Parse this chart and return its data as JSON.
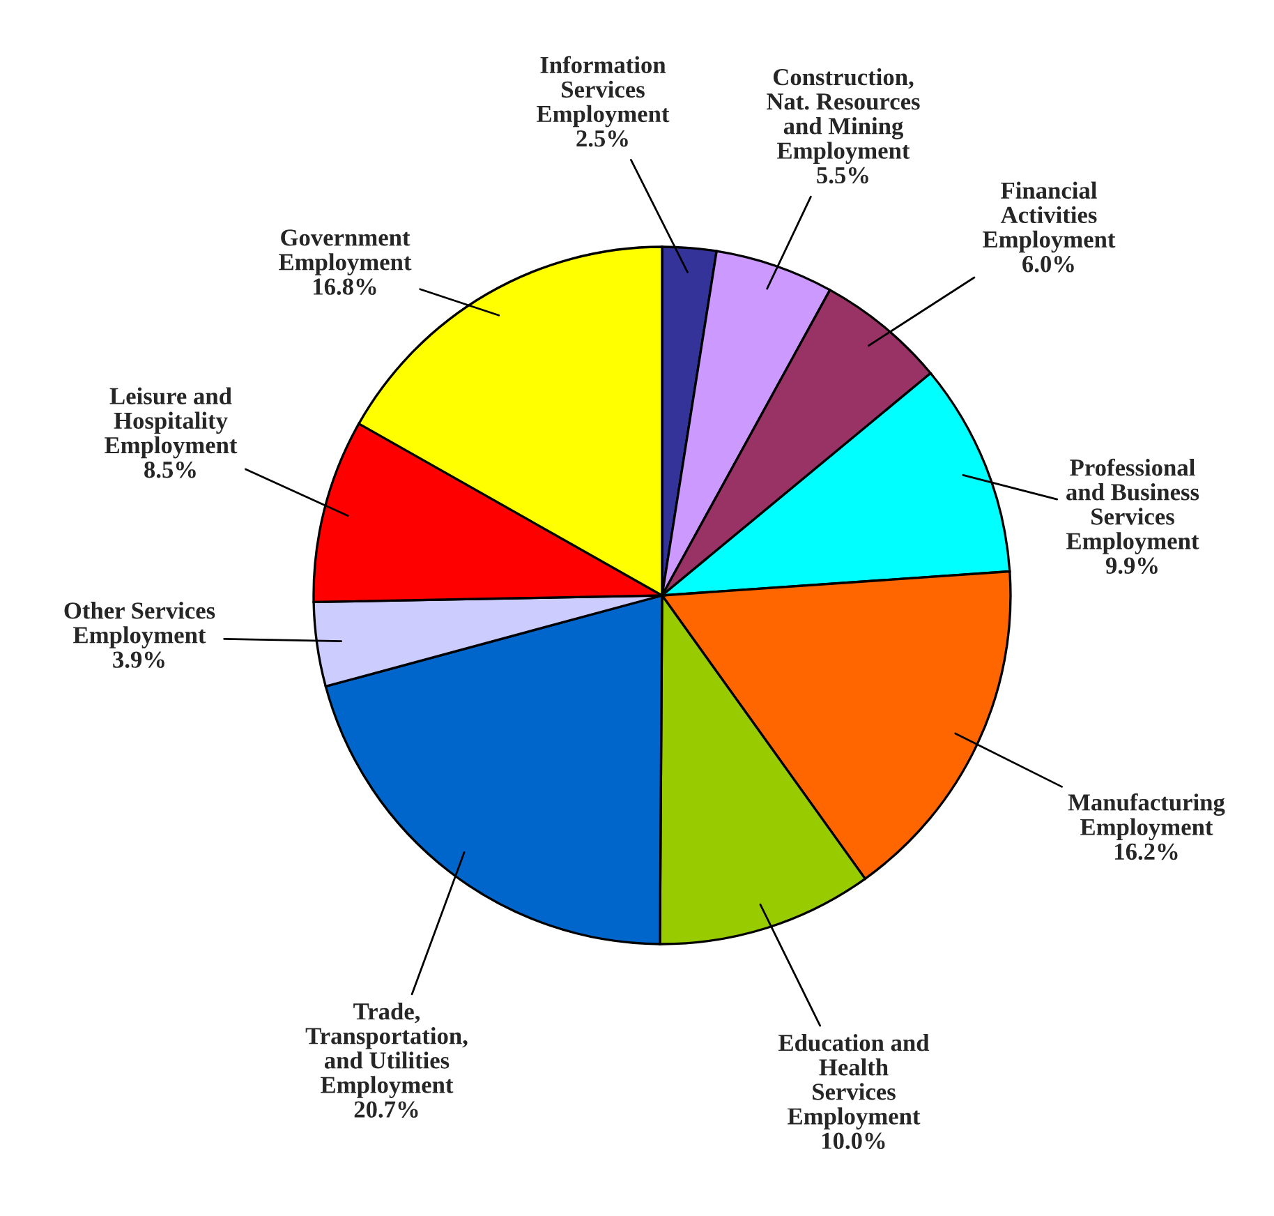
{
  "chart_data": {
    "type": "pie",
    "categories": [
      "Information\nServices\nEmployment",
      "Construction,\nNat. Resources\nand Mining\nEmployment",
      "Financial\nActivities\nEmployment",
      "Professional\nand Business\nServices\nEmployment",
      "Manufacturing\nEmployment",
      "Education and\nHealth\nServices\nEmployment",
      "Trade,\nTransportation,\nand Utilities\nEmployment",
      "Other Services\nEmployment",
      "Leisure and\nHospitality\nEmployment",
      "Government\nEmployment"
    ],
    "values": [
      2.5,
      5.5,
      6.0,
      9.9,
      16.2,
      10.0,
      20.7,
      3.9,
      8.5,
      16.8
    ],
    "value_labels": [
      "2.5%",
      "5.5%",
      "6.0%",
      "9.9%",
      "16.2%",
      "10.0%",
      "20.7%",
      "3.9%",
      "8.5%",
      "16.8%"
    ],
    "colors": [
      "#333399",
      "#cc99ff",
      "#993366",
      "#00ffff",
      "#ff6600",
      "#99cc00",
      "#0066cc",
      "#ccccff",
      "#ff0000",
      "#ffff00"
    ]
  }
}
